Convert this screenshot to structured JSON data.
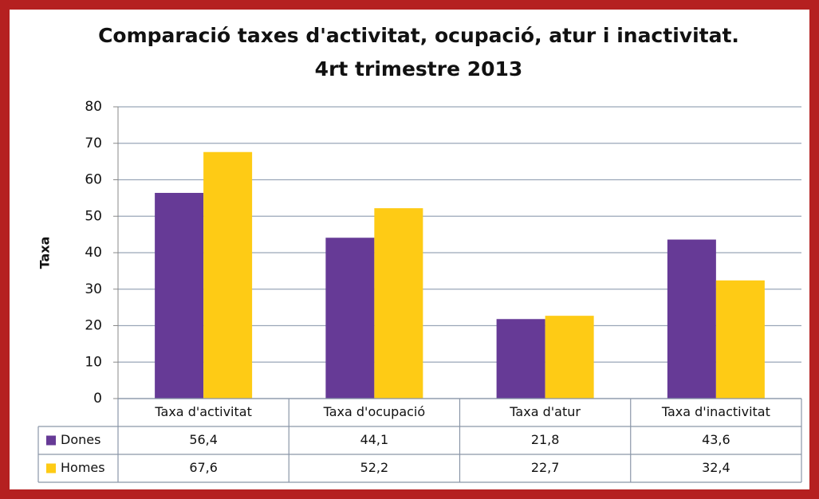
{
  "chart_data": {
    "type": "bar",
    "title": "Comparació taxes d'activitat, ocupació, atur i inactivitat.",
    "subtitle": "4rt trimestre 2013",
    "y_label": "Taxa",
    "categories": [
      "Taxa d'activitat",
      "Taxa d'ocupació",
      "Taxa d'atur",
      "Taxa d'inactivitat"
    ],
    "series": [
      {
        "name": "Dones",
        "color": "#663a96",
        "values": [
          56.4,
          44.1,
          21.8,
          43.6
        ],
        "value_labels": [
          "56,4",
          "44,1",
          "21,8",
          "43,6"
        ]
      },
      {
        "name": "Homes",
        "color": "#fecb15",
        "values": [
          67.6,
          52.2,
          22.7,
          32.4
        ],
        "value_labels": [
          "67,6",
          "52,2",
          "22,7",
          "32,4"
        ]
      }
    ],
    "ylim": [
      0,
      80
    ],
    "yticks": [
      0,
      10,
      20,
      30,
      40,
      50,
      60,
      70,
      80
    ],
    "grid": true,
    "legend": "table"
  }
}
